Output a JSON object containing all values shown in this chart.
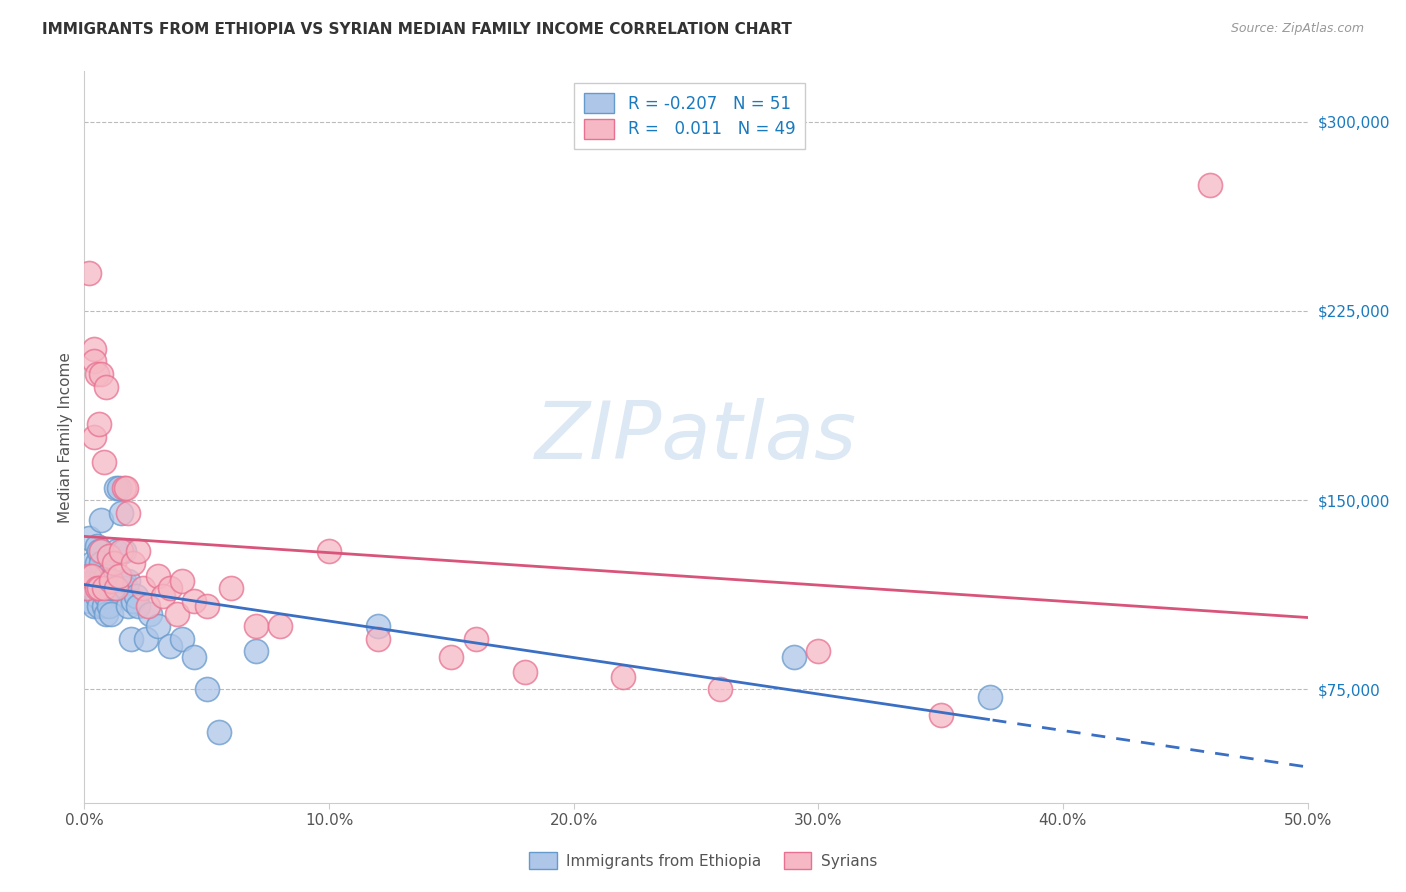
{
  "title": "IMMIGRANTS FROM ETHIOPIA VS SYRIAN MEDIAN FAMILY INCOME CORRELATION CHART",
  "source": "Source: ZipAtlas.com",
  "ylabel": "Median Family Income",
  "xlim": [
    0.0,
    0.5
  ],
  "ylim": [
    30000,
    320000
  ],
  "xticks": [
    0.0,
    0.1,
    0.2,
    0.3,
    0.4,
    0.5
  ],
  "xticklabels": [
    "0.0%",
    "10.0%",
    "20.0%",
    "30.0%",
    "40.0%",
    "50.0%"
  ],
  "yticks_right": [
    75000,
    150000,
    225000,
    300000
  ],
  "ytick_labels_right": [
    "$75,000",
    "$150,000",
    "$225,000",
    "$300,000"
  ],
  "legend_labels": [
    "Immigrants from Ethiopia",
    "Syrians"
  ],
  "legend_R": [
    -0.207,
    0.011
  ],
  "legend_N": [
    51,
    49
  ],
  "blue_fill": "#aec6e8",
  "pink_fill": "#f5b8c4",
  "blue_edge": "#6699cc",
  "pink_edge": "#e87090",
  "blue_line_color": "#3a6fc4",
  "pink_line_color": "#d9547a",
  "watermark": "ZIPatlas",
  "watermark_color": "#dde8f5",
  "grid_color": "#bbbbbb",
  "ethiopia_x": [
    0.001,
    0.002,
    0.002,
    0.003,
    0.003,
    0.004,
    0.004,
    0.005,
    0.005,
    0.005,
    0.006,
    0.006,
    0.006,
    0.007,
    0.007,
    0.007,
    0.008,
    0.008,
    0.009,
    0.009,
    0.009,
    0.01,
    0.01,
    0.011,
    0.011,
    0.012,
    0.013,
    0.013,
    0.014,
    0.015,
    0.016,
    0.016,
    0.017,
    0.018,
    0.018,
    0.019,
    0.02,
    0.021,
    0.022,
    0.025,
    0.027,
    0.03,
    0.035,
    0.04,
    0.045,
    0.05,
    0.055,
    0.07,
    0.12,
    0.29,
    0.37
  ],
  "ethiopia_y": [
    120000,
    110000,
    135000,
    115000,
    125000,
    108000,
    118000,
    112000,
    125000,
    132000,
    118000,
    108000,
    130000,
    142000,
    115000,
    125000,
    108000,
    118000,
    112000,
    120000,
    105000,
    118000,
    108000,
    105000,
    115000,
    115000,
    130000,
    155000,
    155000,
    145000,
    130000,
    118000,
    115000,
    118000,
    108000,
    95000,
    110000,
    112000,
    108000,
    95000,
    105000,
    100000,
    92000,
    95000,
    88000,
    75000,
    58000,
    90000,
    100000,
    88000,
    72000
  ],
  "syrian_x": [
    0.001,
    0.002,
    0.002,
    0.003,
    0.004,
    0.004,
    0.004,
    0.005,
    0.005,
    0.006,
    0.006,
    0.007,
    0.007,
    0.008,
    0.008,
    0.009,
    0.01,
    0.011,
    0.012,
    0.013,
    0.014,
    0.015,
    0.016,
    0.017,
    0.018,
    0.02,
    0.022,
    0.024,
    0.026,
    0.03,
    0.032,
    0.035,
    0.038,
    0.04,
    0.045,
    0.05,
    0.06,
    0.07,
    0.08,
    0.1,
    0.12,
    0.15,
    0.16,
    0.18,
    0.22,
    0.26,
    0.3,
    0.35,
    0.46
  ],
  "syrian_y": [
    115000,
    120000,
    240000,
    120000,
    210000,
    205000,
    175000,
    115000,
    200000,
    180000,
    115000,
    130000,
    200000,
    165000,
    115000,
    195000,
    128000,
    118000,
    125000,
    115000,
    120000,
    130000,
    155000,
    155000,
    145000,
    125000,
    130000,
    115000,
    108000,
    120000,
    112000,
    115000,
    105000,
    118000,
    110000,
    108000,
    115000,
    100000,
    100000,
    130000,
    95000,
    88000,
    95000,
    82000,
    80000,
    75000,
    90000,
    65000,
    275000
  ]
}
